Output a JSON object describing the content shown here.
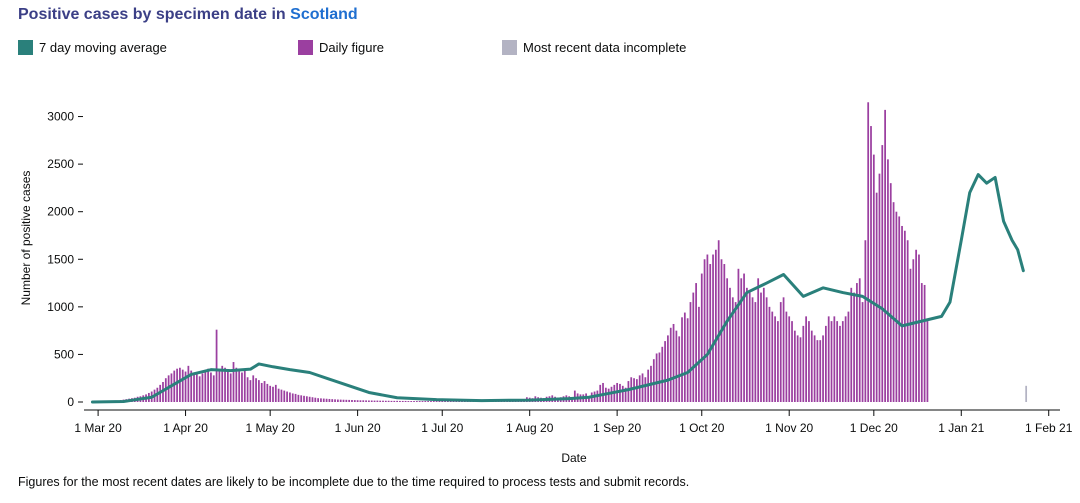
{
  "header": {
    "title_main": "Positive cases by specimen date in",
    "title_area": "Scotland"
  },
  "legend": {
    "items": [
      {
        "label": "7 day moving average",
        "color": "#2a807b"
      },
      {
        "label": "Daily figure",
        "color": "#9b3fa0"
      },
      {
        "label": "Most recent data incomplete",
        "color": "#b3b3c3"
      }
    ]
  },
  "footnote": "Figures for the most recent dates are likely to be incomplete due to the time required to process tests and submit records.",
  "chart_data": {
    "type": "bar",
    "xlabel": "Date",
    "ylabel": "Number of positive cases",
    "ylim": [
      0,
      3300
    ],
    "yticks": [
      0,
      500,
      1000,
      1500,
      2000,
      2500,
      3000
    ],
    "xticks": [
      {
        "date": "2020-03-01",
        "label": "1 Mar 20"
      },
      {
        "date": "2020-04-01",
        "label": "1 Apr 20"
      },
      {
        "date": "2020-05-01",
        "label": "1 May 20"
      },
      {
        "date": "2020-06-01",
        "label": "1 Jun 20"
      },
      {
        "date": "2020-07-01",
        "label": "1 Jul 20"
      },
      {
        "date": "2020-08-01",
        "label": "1 Aug 20"
      },
      {
        "date": "2020-09-01",
        "label": "1 Sep 20"
      },
      {
        "date": "2020-10-01",
        "label": "1 Oct 20"
      },
      {
        "date": "2020-11-01",
        "label": "1 Nov 20"
      },
      {
        "date": "2020-12-01",
        "label": "1 Dec 20"
      },
      {
        "date": "2021-01-01",
        "label": "1 Jan 21"
      },
      {
        "date": "2021-02-01",
        "label": "1 Feb 21"
      }
    ],
    "grid": false,
    "legend_position": "top",
    "series": [
      {
        "name": "Daily figure",
        "kind": "bar",
        "color": "#9b3fa0",
        "start_date": "2020-02-28",
        "values": [
          1,
          2,
          3,
          5,
          4,
          6,
          8,
          10,
          12,
          15,
          20,
          25,
          30,
          35,
          40,
          45,
          55,
          60,
          70,
          80,
          95,
          110,
          130,
          150,
          180,
          210,
          250,
          280,
          300,
          330,
          350,
          360,
          340,
          320,
          380,
          330,
          310,
          290,
          270,
          300,
          330,
          350,
          310,
          280,
          760,
          330,
          380,
          360,
          330,
          300,
          420,
          360,
          330,
          310,
          340,
          260,
          230,
          280,
          250,
          230,
          200,
          220,
          190,
          170,
          160,
          180,
          140,
          130,
          120,
          110,
          100,
          90,
          85,
          75,
          70,
          65,
          60,
          55,
          50,
          45,
          40,
          38,
          36,
          34,
          32,
          30,
          28,
          26,
          25,
          24,
          23,
          22,
          21,
          20,
          19,
          18,
          18,
          17,
          16,
          16,
          15,
          15,
          14,
          14,
          13,
          13,
          12,
          12,
          12,
          11,
          11,
          11,
          10,
          10,
          10,
          10,
          10,
          10,
          10,
          10,
          10,
          10,
          10,
          11,
          11,
          11,
          12,
          12,
          12,
          13,
          13,
          13,
          14,
          14,
          15,
          15,
          16,
          16,
          17,
          17,
          18,
          18,
          19,
          19,
          20,
          20,
          20,
          30,
          20,
          20,
          20,
          20,
          20,
          20,
          50,
          45,
          40,
          60,
          50,
          45,
          40,
          55,
          60,
          70,
          55,
          45,
          50,
          60,
          70,
          60,
          50,
          120,
          90,
          80,
          80,
          90,
          60,
          100,
          110,
          120,
          180,
          200,
          150,
          140,
          160,
          180,
          200,
          190,
          170,
          150,
          220,
          260,
          250,
          240,
          280,
          300,
          260,
          340,
          380,
          450,
          510,
          520,
          580,
          640,
          700,
          780,
          820,
          750,
          690,
          890,
          940,
          880,
          1050,
          1150,
          1250,
          1000,
          1350,
          1500,
          1550,
          1450,
          1550,
          1600,
          1700,
          1500,
          1450,
          1300,
          1200,
          1100,
          1050,
          1400,
          1300,
          1350,
          1200,
          1150,
          1100,
          1050,
          1300,
          1150,
          1200,
          1100,
          1000,
          950,
          900,
          850,
          1050,
          1100,
          950,
          900,
          850,
          750,
          700,
          680,
          800,
          900,
          850,
          750,
          700,
          650,
          650,
          700,
          800,
          900,
          850,
          900,
          850,
          800,
          850,
          900,
          950,
          1200,
          1150,
          1250,
          1300,
          1050,
          1700,
          3150,
          2900,
          2600,
          2200,
          2400,
          2700,
          3070,
          2550,
          2300,
          2100,
          2000,
          1950,
          1850,
          1800,
          1700,
          1400,
          1500,
          1600,
          1550,
          1250,
          1230,
          850
        ]
      },
      {
        "name": "Most recent data incomplete",
        "kind": "bar",
        "color": "#b3b3c3",
        "start_date": "2021-01-24",
        "values": [
          170
        ]
      },
      {
        "name": "7 day moving average",
        "kind": "line",
        "color": "#2a807b",
        "points": [
          [
            "2020-02-28",
            0
          ],
          [
            "2020-03-10",
            5
          ],
          [
            "2020-03-20",
            50
          ],
          [
            "2020-03-27",
            170
          ],
          [
            "2020-04-03",
            290
          ],
          [
            "2020-04-10",
            340
          ],
          [
            "2020-04-17",
            330
          ],
          [
            "2020-04-24",
            345
          ],
          [
            "2020-04-27",
            400
          ],
          [
            "2020-05-02",
            370
          ],
          [
            "2020-05-08",
            340
          ],
          [
            "2020-05-15",
            310
          ],
          [
            "2020-05-22",
            240
          ],
          [
            "2020-05-29",
            170
          ],
          [
            "2020-06-05",
            100
          ],
          [
            "2020-06-15",
            45
          ],
          [
            "2020-06-29",
            25
          ],
          [
            "2020-07-15",
            15
          ],
          [
            "2020-08-01",
            20
          ],
          [
            "2020-08-15",
            35
          ],
          [
            "2020-08-22",
            50
          ],
          [
            "2020-08-29",
            90
          ],
          [
            "2020-09-05",
            130
          ],
          [
            "2020-09-12",
            180
          ],
          [
            "2020-09-19",
            230
          ],
          [
            "2020-09-26",
            310
          ],
          [
            "2020-10-03",
            500
          ],
          [
            "2020-10-10",
            850
          ],
          [
            "2020-10-17",
            1150
          ],
          [
            "2020-10-24",
            1250
          ],
          [
            "2020-10-30",
            1340
          ],
          [
            "2020-11-06",
            1110
          ],
          [
            "2020-11-13",
            1200
          ],
          [
            "2020-11-20",
            1150
          ],
          [
            "2020-11-27",
            1110
          ],
          [
            "2020-12-04",
            980
          ],
          [
            "2020-12-11",
            800
          ],
          [
            "2020-12-18",
            850
          ],
          [
            "2020-12-25",
            900
          ],
          [
            "2020-12-28",
            1050
          ],
          [
            "2021-01-01",
            1700
          ],
          [
            "2021-01-04",
            2200
          ],
          [
            "2021-01-07",
            2390
          ],
          [
            "2021-01-10",
            2300
          ],
          [
            "2021-01-13",
            2360
          ],
          [
            "2021-01-16",
            1900
          ],
          [
            "2021-01-19",
            1700
          ],
          [
            "2021-01-21",
            1600
          ],
          [
            "2021-01-23",
            1380
          ]
        ]
      }
    ]
  }
}
